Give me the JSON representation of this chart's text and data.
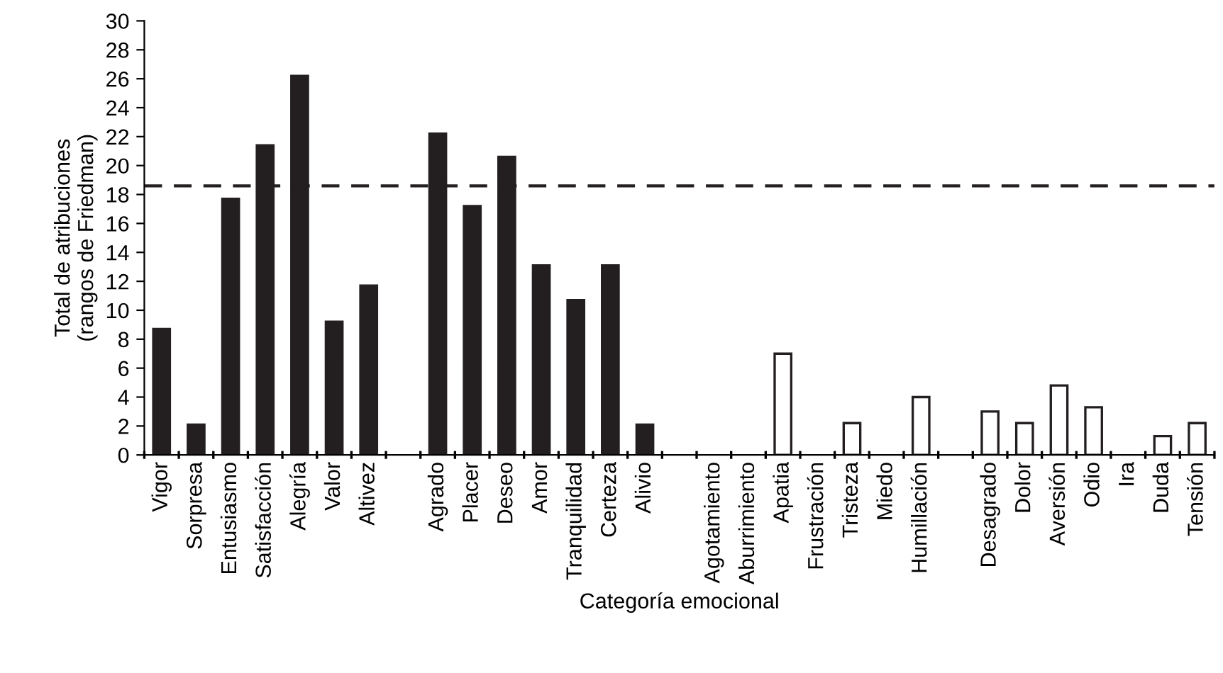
{
  "chart_data": {
    "type": "bar",
    "xlabel": "Categoría emocional",
    "ylabel": "Total de atribuciones\n(rangos de Friedman)",
    "categories": [
      "Vigor",
      "Sorpresa",
      "Entusiasmo",
      "Satisfacción",
      "Alegría",
      "Valor",
      "Altivez",
      null,
      "Agrado",
      "Placer",
      "Deseo",
      "Amor",
      "Tranquilidad",
      "Certeza",
      "Alivio",
      null,
      "Agotamiento",
      "Aburrimiento",
      "Apatia",
      "Frustración",
      "Tristeza",
      "Miedo",
      "Humillación",
      null,
      "Desagrado",
      "Dolor",
      "Aversión",
      "Odio",
      "Ira",
      "Duda",
      "Tensión"
    ],
    "values": [
      8.7,
      2.1,
      17.7,
      21.4,
      26.2,
      9.2,
      11.7,
      null,
      22.2,
      17.2,
      20.6,
      13.1,
      10.7,
      13.1,
      2.1,
      null,
      0,
      0,
      7.0,
      0,
      2.2,
      0,
      4.0,
      null,
      3.0,
      2.2,
      4.8,
      3.3,
      0,
      1.3,
      2.2
    ],
    "colors": [
      "#231f20",
      "#231f20",
      "#231f20",
      "#231f20",
      "#231f20",
      "#231f20",
      "#231f20",
      null,
      "#231f20",
      "#231f20",
      "#231f20",
      "#231f20",
      "#231f20",
      "#231f20",
      "#231f20",
      null,
      "#ffffff",
      "#ffffff",
      "#ffffff",
      "#ffffff",
      "#ffffff",
      "#ffffff",
      "#ffffff",
      null,
      "#ffffff",
      "#ffffff",
      "#ffffff",
      "#ffffff",
      "#ffffff",
      "#ffffff",
      "#ffffff"
    ],
    "ylim": [
      0,
      30
    ],
    "yticks": [
      0,
      2,
      4,
      6,
      8,
      10,
      12,
      14,
      16,
      18,
      20,
      22,
      24,
      26,
      28,
      30
    ],
    "grid": false,
    "ref_lines": [
      {
        "axis": "y",
        "value": 18.6,
        "color": "#231f20",
        "line_style": "dashed"
      }
    ]
  }
}
